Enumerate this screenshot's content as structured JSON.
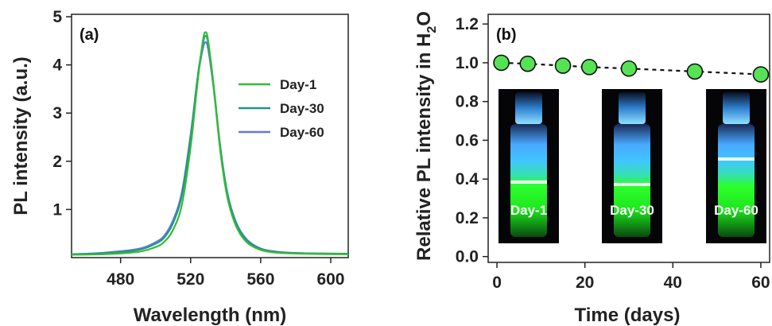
{
  "chart_data": [
    {
      "type": "line",
      "panel_label": "(a)",
      "xlabel": "Wavelength (nm)",
      "ylabel": "PL intensity (a.u.)",
      "xlim": [
        452,
        610
      ],
      "ylim": [
        0,
        5.05
      ],
      "xticks": [
        480,
        520,
        560,
        600
      ],
      "yticks": [
        1,
        2,
        3,
        4,
        5
      ],
      "legend_position": "right",
      "series": [
        {
          "name": "Day-1",
          "color": "#33bb33",
          "peak_x": 528.5,
          "peak_y": 4.68,
          "x": [
            452,
            470,
            490,
            500,
            505,
            510,
            515,
            520,
            524,
            527,
            528.5,
            530,
            533,
            537,
            541,
            546,
            552,
            560,
            570,
            585,
            610
          ],
          "y": [
            0.06,
            0.07,
            0.12,
            0.22,
            0.33,
            0.58,
            1.1,
            2.3,
            3.65,
            4.5,
            4.68,
            4.5,
            3.6,
            2.2,
            1.25,
            0.65,
            0.32,
            0.16,
            0.1,
            0.08,
            0.07
          ]
        },
        {
          "name": "Day-30",
          "color": "#22948e",
          "peak_x": 528.5,
          "peak_y": 4.6,
          "x": [
            452,
            470,
            490,
            500,
            505,
            510,
            515,
            520,
            524,
            527,
            528.5,
            530,
            533,
            537,
            541,
            546,
            552,
            560,
            570,
            585,
            610
          ],
          "y": [
            0.07,
            0.09,
            0.16,
            0.29,
            0.42,
            0.72,
            1.3,
            2.5,
            3.75,
            4.44,
            4.6,
            4.45,
            3.62,
            2.28,
            1.33,
            0.71,
            0.36,
            0.18,
            0.11,
            0.09,
            0.08
          ]
        },
        {
          "name": "Day-60",
          "color": "#6677dd",
          "peak_x": 528.5,
          "peak_y": 4.47,
          "x": [
            452,
            470,
            490,
            500,
            505,
            510,
            515,
            520,
            524,
            527,
            528.5,
            530,
            533,
            537,
            541,
            546,
            552,
            560,
            570,
            585,
            610
          ],
          "y": [
            0.07,
            0.1,
            0.18,
            0.32,
            0.46,
            0.78,
            1.36,
            2.55,
            3.72,
            4.34,
            4.47,
            4.33,
            3.55,
            2.27,
            1.34,
            0.73,
            0.38,
            0.19,
            0.12,
            0.09,
            0.08
          ]
        }
      ]
    },
    {
      "type": "scatter",
      "panel_label": "(b)",
      "xlabel": "Time (days)",
      "ylabel_main": "Relative PL intensity in H",
      "ylabel_sub": "2",
      "ylabel_end": "O",
      "xlim": [
        -2,
        62
      ],
      "ylim": [
        -0.03,
        1.25
      ],
      "xticks": [
        0,
        20,
        40,
        60
      ],
      "yticks": [
        0.0,
        0.2,
        0.4,
        0.6,
        0.8,
        1.0,
        1.2
      ],
      "ytick_labels": [
        "0.0",
        "0.2",
        "0.4",
        "0.6",
        "0.8",
        "1.0",
        "1.2"
      ],
      "marker_color": "#55e355",
      "line_style": "dashed",
      "x": [
        1,
        7,
        15,
        21,
        30,
        45,
        60
      ],
      "y": [
        1.0,
        0.995,
        0.985,
        0.978,
        0.97,
        0.955,
        0.94
      ],
      "insets": [
        {
          "label": "Day-1",
          "glow_color": "#44ff22"
        },
        {
          "label": "Day-30",
          "glow_color": "#44ff22"
        },
        {
          "label": "Day-60",
          "glow_color": "#44ff22"
        }
      ]
    }
  ]
}
